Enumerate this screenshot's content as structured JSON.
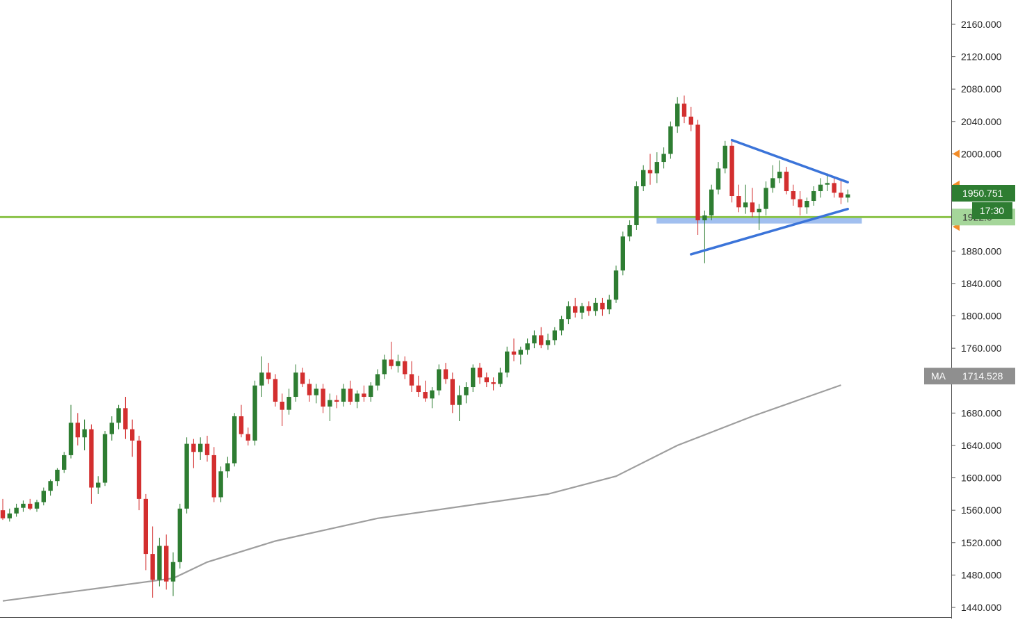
{
  "chart_data": {
    "type": "candlestick",
    "ylim": [
      1428,
      2190
    ],
    "grid": false,
    "yticks": [
      1440,
      1480,
      1520,
      1560,
      1600,
      1640,
      1680,
      1720,
      1760,
      1800,
      1840,
      1880,
      1920,
      1960,
      2000,
      2040,
      2080,
      2120,
      2160
    ],
    "ytick_labels": [
      "1440.000",
      "1480.000",
      "1520.000",
      "1560.000",
      "1600.000",
      "1640.000",
      "1680.000",
      "",
      "1760.000",
      "1800.000",
      "1840.000",
      "1880.000",
      "",
      "",
      "2000.000",
      "2040.000",
      "2080.000",
      "2120.000",
      "2160.000"
    ],
    "up_color": "#2e7d32",
    "down_color": "#d32f2f",
    "candles": [
      [
        1560,
        1574,
        1548,
        1550
      ],
      [
        1550,
        1562,
        1546,
        1556
      ],
      [
        1556,
        1568,
        1552,
        1563
      ],
      [
        1563,
        1572,
        1558,
        1568
      ],
      [
        1568,
        1574,
        1560,
        1562
      ],
      [
        1562,
        1573,
        1558,
        1570
      ],
      [
        1570,
        1588,
        1566,
        1584
      ],
      [
        1584,
        1598,
        1578,
        1596
      ],
      [
        1596,
        1612,
        1590,
        1610
      ],
      [
        1610,
        1632,
        1606,
        1628
      ],
      [
        1628,
        1690,
        1624,
        1668
      ],
      [
        1668,
        1680,
        1640,
        1650
      ],
      [
        1650,
        1672,
        1634,
        1660
      ],
      [
        1660,
        1666,
        1568,
        1588
      ],
      [
        1588,
        1602,
        1580,
        1594
      ],
      [
        1594,
        1658,
        1590,
        1654
      ],
      [
        1654,
        1676,
        1646,
        1668
      ],
      [
        1668,
        1690,
        1660,
        1686
      ],
      [
        1686,
        1700,
        1648,
        1660
      ],
      [
        1660,
        1672,
        1626,
        1646
      ],
      [
        1646,
        1652,
        1560,
        1574
      ],
      [
        1574,
        1580,
        1486,
        1506
      ],
      [
        1506,
        1540,
        1452,
        1474
      ],
      [
        1474,
        1526,
        1466,
        1516
      ],
      [
        1516,
        1530,
        1462,
        1472
      ],
      [
        1472,
        1508,
        1454,
        1496
      ],
      [
        1496,
        1568,
        1488,
        1562
      ],
      [
        1562,
        1650,
        1556,
        1642
      ],
      [
        1642,
        1648,
        1612,
        1632
      ],
      [
        1632,
        1650,
        1622,
        1642
      ],
      [
        1642,
        1652,
        1620,
        1628
      ],
      [
        1628,
        1638,
        1570,
        1576
      ],
      [
        1576,
        1614,
        1570,
        1608
      ],
      [
        1608,
        1626,
        1600,
        1618
      ],
      [
        1618,
        1680,
        1614,
        1676
      ],
      [
        1676,
        1690,
        1650,
        1654
      ],
      [
        1654,
        1662,
        1640,
        1646
      ],
      [
        1646,
        1720,
        1640,
        1714
      ],
      [
        1714,
        1750,
        1700,
        1730
      ],
      [
        1730,
        1742,
        1716,
        1722
      ],
      [
        1722,
        1728,
        1688,
        1694
      ],
      [
        1694,
        1704,
        1664,
        1684
      ],
      [
        1684,
        1710,
        1678,
        1700
      ],
      [
        1700,
        1740,
        1694,
        1730
      ],
      [
        1730,
        1736,
        1712,
        1716
      ],
      [
        1716,
        1722,
        1694,
        1702
      ],
      [
        1702,
        1716,
        1692,
        1710
      ],
      [
        1710,
        1716,
        1680,
        1688
      ],
      [
        1688,
        1704,
        1670,
        1696
      ],
      [
        1696,
        1702,
        1686,
        1694
      ],
      [
        1694,
        1716,
        1688,
        1710
      ],
      [
        1710,
        1720,
        1690,
        1694
      ],
      [
        1694,
        1708,
        1686,
        1704
      ],
      [
        1704,
        1714,
        1694,
        1700
      ],
      [
        1700,
        1718,
        1694,
        1714
      ],
      [
        1714,
        1734,
        1708,
        1728
      ],
      [
        1728,
        1752,
        1722,
        1746
      ],
      [
        1746,
        1768,
        1734,
        1738
      ],
      [
        1738,
        1752,
        1730,
        1744
      ],
      [
        1744,
        1750,
        1722,
        1728
      ],
      [
        1728,
        1744,
        1706,
        1714
      ],
      [
        1714,
        1726,
        1700,
        1706
      ],
      [
        1706,
        1720,
        1694,
        1698
      ],
      [
        1698,
        1712,
        1686,
        1708
      ],
      [
        1708,
        1740,
        1702,
        1734
      ],
      [
        1734,
        1742,
        1716,
        1722
      ],
      [
        1722,
        1730,
        1680,
        1690
      ],
      [
        1690,
        1714,
        1670,
        1702
      ],
      [
        1702,
        1718,
        1692,
        1712
      ],
      [
        1712,
        1740,
        1706,
        1736
      ],
      [
        1736,
        1742,
        1716,
        1724
      ],
      [
        1724,
        1730,
        1712,
        1718
      ],
      [
        1718,
        1724,
        1708,
        1716
      ],
      [
        1716,
        1736,
        1712,
        1730
      ],
      [
        1730,
        1762,
        1724,
        1756
      ],
      [
        1756,
        1772,
        1744,
        1752
      ],
      [
        1752,
        1762,
        1740,
        1758
      ],
      [
        1758,
        1772,
        1752,
        1766
      ],
      [
        1766,
        1782,
        1760,
        1776
      ],
      [
        1776,
        1786,
        1760,
        1764
      ],
      [
        1764,
        1778,
        1758,
        1770
      ],
      [
        1770,
        1786,
        1764,
        1782
      ],
      [
        1782,
        1800,
        1776,
        1796
      ],
      [
        1796,
        1818,
        1790,
        1812
      ],
      [
        1812,
        1822,
        1798,
        1804
      ],
      [
        1804,
        1816,
        1796,
        1812
      ],
      [
        1812,
        1818,
        1800,
        1806
      ],
      [
        1806,
        1822,
        1800,
        1816
      ],
      [
        1816,
        1822,
        1800,
        1808
      ],
      [
        1808,
        1826,
        1802,
        1820
      ],
      [
        1820,
        1862,
        1816,
        1856
      ],
      [
        1856,
        1904,
        1850,
        1898
      ],
      [
        1898,
        1918,
        1892,
        1912
      ],
      [
        1912,
        1966,
        1906,
        1960
      ],
      [
        1960,
        1986,
        1954,
        1980
      ],
      [
        1980,
        2000,
        1962,
        1976
      ],
      [
        1976,
        2002,
        1964,
        1990
      ],
      [
        1990,
        2008,
        1982,
        2000
      ],
      [
        2000,
        2040,
        1994,
        2034
      ],
      [
        2034,
        2070,
        2026,
        2062
      ],
      [
        2062,
        2072,
        2038,
        2046
      ],
      [
        2046,
        2058,
        2028,
        2036
      ],
      [
        2036,
        2042,
        1900,
        1918
      ],
      [
        1918,
        1930,
        1865,
        1924
      ],
      [
        1924,
        1962,
        1918,
        1956
      ],
      [
        1956,
        1990,
        1950,
        1982
      ],
      [
        1982,
        2016,
        1976,
        2010
      ],
      [
        2010,
        2018,
        1940,
        1948
      ],
      [
        1948,
        1962,
        1928,
        1934
      ],
      [
        1934,
        1962,
        1926,
        1940
      ],
      [
        1940,
        1958,
        1922,
        1928
      ],
      [
        1928,
        1938,
        1906,
        1932
      ],
      [
        1932,
        1966,
        1924,
        1958
      ],
      [
        1958,
        1986,
        1952,
        1970
      ],
      [
        1970,
        1992,
        1964,
        1978
      ],
      [
        1978,
        1984,
        1950,
        1954
      ],
      [
        1954,
        1962,
        1936,
        1944
      ],
      [
        1944,
        1954,
        1924,
        1934
      ],
      [
        1934,
        1946,
        1926,
        1942
      ],
      [
        1942,
        1960,
        1936,
        1954
      ],
      [
        1954,
        1970,
        1946,
        1962
      ],
      [
        1962,
        1976,
        1954,
        1964
      ],
      [
        1964,
        1972,
        1946,
        1952
      ],
      [
        1952,
        1968,
        1938,
        1946
      ],
      [
        1946,
        1956,
        1940,
        1950
      ]
    ],
    "moving_average": {
      "label": "MA",
      "value_label": "1714.528",
      "color": "#9e9e9e",
      "points": [
        [
          0,
          1448
        ],
        [
          25,
          1476
        ],
        [
          30,
          1496
        ],
        [
          40,
          1522
        ],
        [
          55,
          1550
        ],
        [
          70,
          1568
        ],
        [
          80,
          1580
        ],
        [
          90,
          1602
        ],
        [
          99,
          1640
        ],
        [
          110,
          1676
        ],
        [
          123,
          1714.5
        ]
      ]
    },
    "horizontal_line": {
      "value": 1922,
      "color": "#8bc34a"
    },
    "support_zone": {
      "from": 1914,
      "to": 1923,
      "color": "#90b4ec",
      "start_index": 99,
      "end_index": 123
    },
    "triangle": {
      "color": "#3b74d9",
      "upper": [
        [
          107,
          2017
        ],
        [
          124,
          1965
        ]
      ],
      "lower": [
        [
          101,
          1876
        ],
        [
          124,
          1932
        ]
      ]
    },
    "price_label": {
      "value": "1950.751",
      "countdown": "17:30",
      "color": "#2e7d32"
    },
    "hidden_label_value": "1922.0",
    "alert_markers": [
      2000,
      1962,
      1910
    ]
  }
}
